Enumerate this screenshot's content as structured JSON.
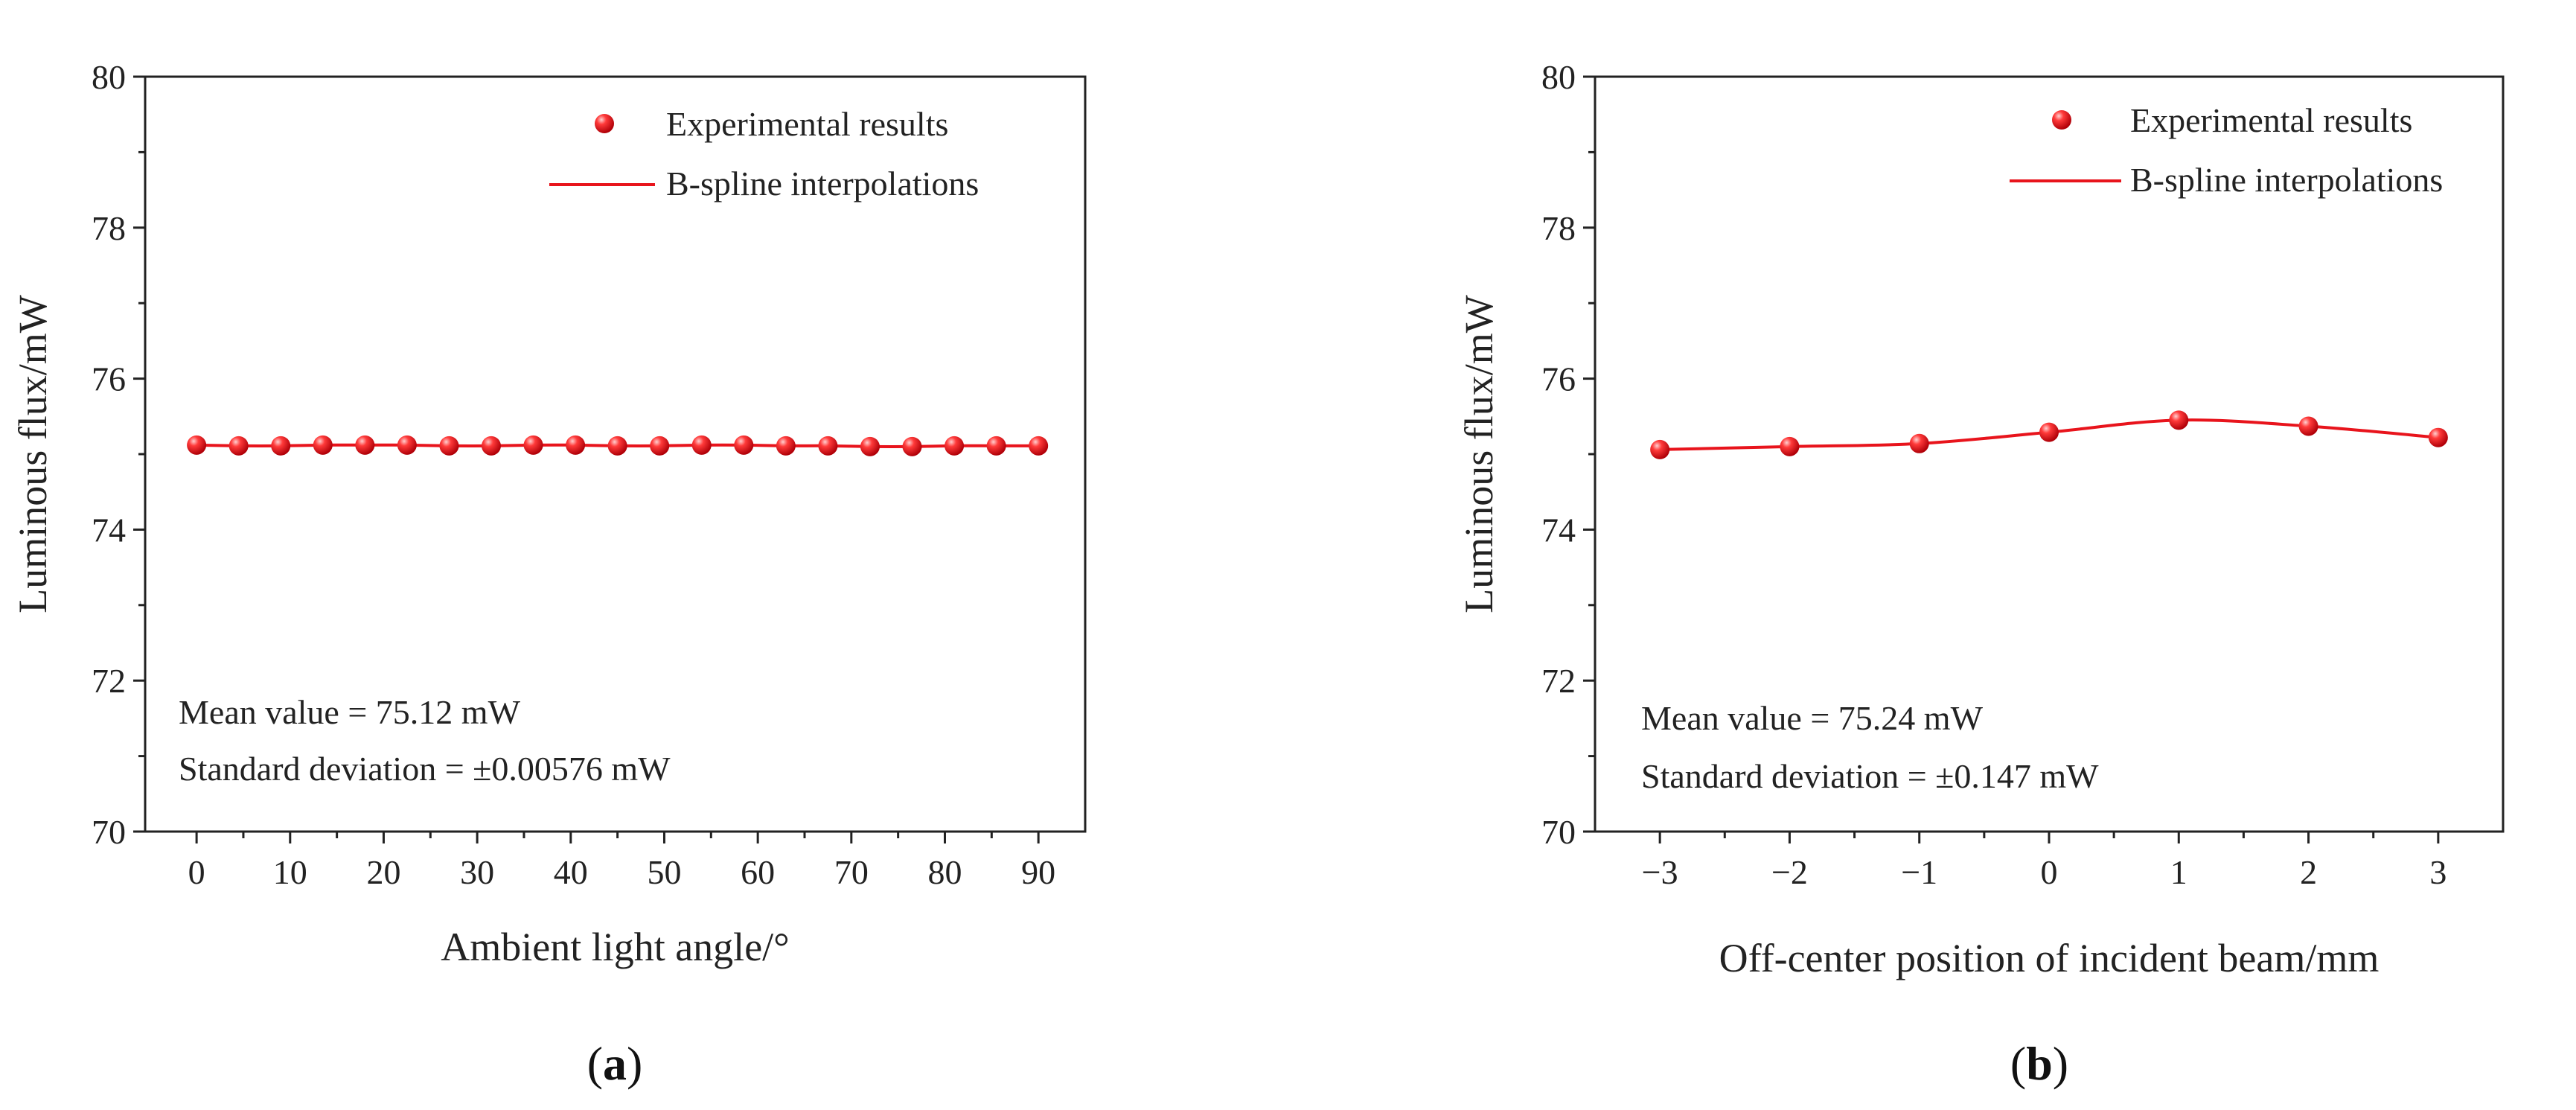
{
  "colors": {
    "series": "#e8141c",
    "axis": "#222222"
  },
  "chart_data": [
    {
      "type": "scatter",
      "panel_label": "a",
      "title": "",
      "xlabel": "Ambient light angle/°",
      "ylabel": "Luminous flux/mW",
      "xlim": [
        -5.5,
        95
      ],
      "ylim": [
        70,
        80
      ],
      "xticks": [
        0,
        10,
        20,
        30,
        40,
        50,
        60,
        70,
        80,
        90
      ],
      "yticks": [
        70,
        72,
        74,
        76,
        78,
        80
      ],
      "grid": false,
      "legend": [
        "Experimental results",
        "B-spline interpolations"
      ],
      "legend_position": "top-right",
      "annotations": [
        "Mean value = 75.12 mW",
        "Standard deviation = ±0.00576 mW"
      ],
      "series": [
        {
          "name": "Experimental results",
          "x": [
            0,
            4.5,
            9,
            13.5,
            18,
            22.5,
            27,
            31.5,
            36,
            40.5,
            45,
            49.5,
            54,
            58.5,
            63,
            67.5,
            72,
            76.5,
            81,
            85.5,
            90
          ],
          "y": [
            75.12,
            75.11,
            75.11,
            75.12,
            75.12,
            75.12,
            75.11,
            75.11,
            75.12,
            75.12,
            75.11,
            75.11,
            75.12,
            75.12,
            75.11,
            75.11,
            75.1,
            75.1,
            75.11,
            75.11,
            75.11
          ]
        },
        {
          "name": "B-spline interpolations",
          "x": [
            0,
            4.5,
            9,
            13.5,
            18,
            22.5,
            27,
            31.5,
            36,
            40.5,
            45,
            49.5,
            54,
            58.5,
            63,
            67.5,
            72,
            76.5,
            81,
            85.5,
            90
          ],
          "y": [
            75.12,
            75.11,
            75.11,
            75.12,
            75.12,
            75.12,
            75.11,
            75.11,
            75.12,
            75.12,
            75.11,
            75.11,
            75.12,
            75.12,
            75.11,
            75.11,
            75.1,
            75.1,
            75.11,
            75.11,
            75.11
          ]
        }
      ]
    },
    {
      "type": "scatter",
      "panel_label": "b",
      "title": "",
      "xlabel": "Off-center position of incident beam/mm",
      "ylabel": "Luminous flux/mW",
      "xlim": [
        -3.5,
        3.5
      ],
      "ylim": [
        70,
        80
      ],
      "xticks": [
        -3,
        -2,
        -1,
        0,
        1,
        2,
        3
      ],
      "xtick_labels": [
        "−3",
        "−2",
        "−1",
        "0",
        "1",
        "2",
        "3"
      ],
      "yticks": [
        70,
        72,
        74,
        76,
        78,
        80
      ],
      "grid": false,
      "legend": [
        "Experimental results",
        "B-spline interpolations"
      ],
      "legend_position": "top-right",
      "annotations": [
        "Mean value = 75.24 mW",
        "Standard deviation = ±0.147 mW"
      ],
      "series": [
        {
          "name": "Experimental results",
          "x": [
            -3,
            -2,
            -1,
            0,
            1,
            2,
            3
          ],
          "y": [
            75.06,
            75.1,
            75.14,
            75.29,
            75.45,
            75.37,
            75.22
          ]
        },
        {
          "name": "B-spline interpolations",
          "x": [
            -3,
            -2,
            -1,
            0,
            1,
            2,
            3
          ],
          "y": [
            75.06,
            75.1,
            75.14,
            75.29,
            75.45,
            75.37,
            75.22
          ]
        }
      ]
    }
  ]
}
